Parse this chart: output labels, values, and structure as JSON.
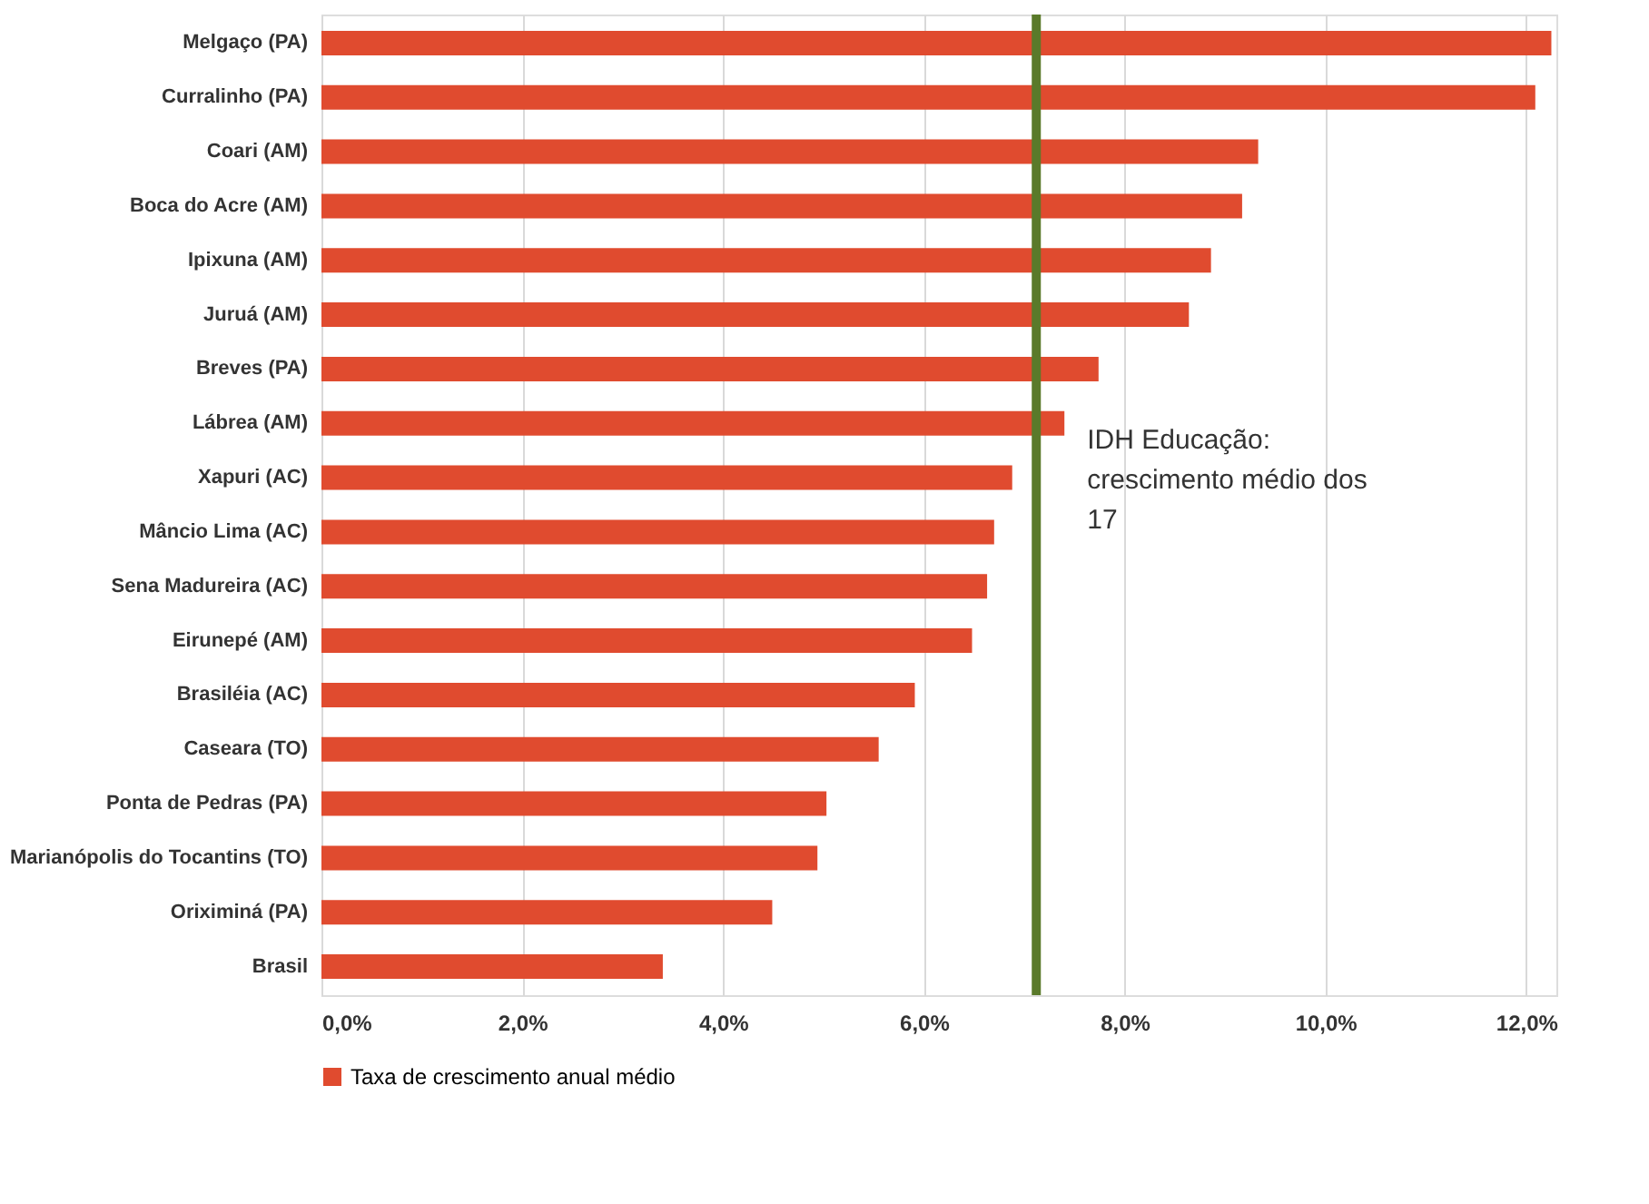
{
  "chart_data": {
    "type": "bar",
    "orientation": "horizontal",
    "categories": [
      "Melgaço (PA)",
      "Curralinho (PA)",
      "Coari (AM)",
      "Boca do Acre (AM)",
      "Ipixuna (AM)",
      "Juruá (AM)",
      "Breves (PA)",
      "Lábrea (AM)",
      "Xapuri (AC)",
      "Mâncio Lima (AC)",
      "Sena Madureira (AC)",
      "Eirunepé (AM)",
      "Brasiléia (AC)",
      "Caseara (TO)",
      "Ponta de Pedras (PA)",
      "Marianópolis do Tocantins (TO)",
      "Oriximiná (PA)",
      "Brasil"
    ],
    "series": [
      {
        "name": "Taxa de crescimento anual médio",
        "color": "#e04b2f",
        "values": [
          12.25,
          12.09,
          9.33,
          9.17,
          8.86,
          8.64,
          7.74,
          7.4,
          6.88,
          6.7,
          6.63,
          6.48,
          5.91,
          5.55,
          5.03,
          4.94,
          4.49,
          3.4
        ]
      }
    ],
    "xlim": [
      0,
      12.3
    ],
    "xticks": [
      {
        "value": 0,
        "label": "0,0%"
      },
      {
        "value": 2,
        "label": "2,0%"
      },
      {
        "value": 4,
        "label": "4,0%"
      },
      {
        "value": 6,
        "label": "6,0%"
      },
      {
        "value": 8,
        "label": "8,0%"
      },
      {
        "value": 10,
        "label": "10,0%"
      },
      {
        "value": 12,
        "label": "12,0%"
      }
    ],
    "ref_lines": [
      {
        "axis": "x",
        "value": 7.12,
        "label": "IDH Educação:\ncrescimento médio dos\n17",
        "color": "#5a7a2a"
      }
    ],
    "grid": "x",
    "legend": "bottom"
  }
}
